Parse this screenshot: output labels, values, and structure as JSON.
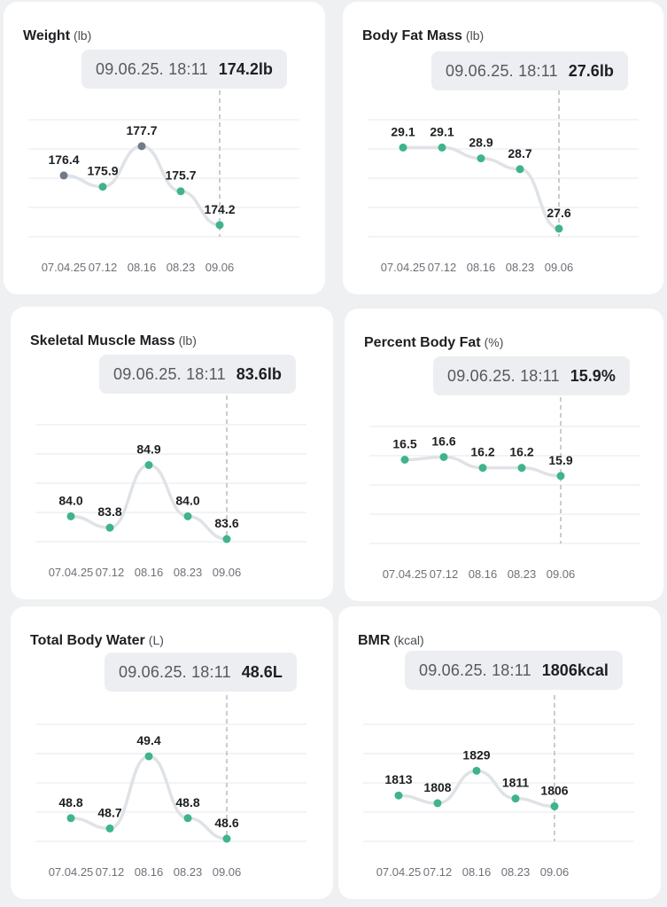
{
  "colors": {
    "line": "#dfe2e6",
    "grid": "#e6e8eb",
    "point": "#3fb48b",
    "point_highlight": "#6f7a8a",
    "cursor": "#b7bbc1"
  },
  "cards": [
    {
      "title": "Weight",
      "unit": "(lb)",
      "timestamp": "09.06.25. 18:11",
      "current_value": "174.2lb",
      "chart_data": {
        "type": "line",
        "x": [
          "07.04.25",
          "07.12",
          "08.16",
          "08.23",
          "09.06"
        ],
        "values": [
          176.4,
          175.9,
          177.7,
          175.7,
          174.2
        ],
        "labels": [
          "176.4",
          "175.9",
          "177.7",
          "175.7",
          "174.2"
        ],
        "highlighted": [
          0,
          2
        ],
        "ylim": [
          173.8,
          178.6
        ]
      }
    },
    {
      "title": "Body Fat Mass",
      "unit": "(lb)",
      "timestamp": "09.06.25. 18:11",
      "current_value": "27.6lb",
      "chart_data": {
        "type": "line",
        "x": [
          "07.04.25",
          "07.12",
          "08.16",
          "08.23",
          "09.06"
        ],
        "values": [
          29.1,
          29.1,
          28.9,
          28.7,
          27.6
        ],
        "labels": [
          "29.1",
          "29.1",
          "28.9",
          "28.7",
          "27.6"
        ],
        "highlighted": [],
        "ylim": [
          27.5,
          29.5
        ]
      }
    },
    {
      "title": "Skeletal Muscle Mass",
      "unit": "(lb)",
      "timestamp": "09.06.25. 18:11",
      "current_value": "83.6lb",
      "chart_data": {
        "type": "line",
        "x": [
          "07.04.25",
          "07.12",
          "08.16",
          "08.23",
          "09.06"
        ],
        "values": [
          84.0,
          83.8,
          84.9,
          84.0,
          83.6
        ],
        "labels": [
          "84.0",
          "83.8",
          "84.9",
          "84.0",
          "83.6"
        ],
        "highlighted": [],
        "ylim": [
          83.6,
          85.5
        ]
      }
    },
    {
      "title": "Percent Body Fat",
      "unit": "(%)",
      "timestamp": "09.06.25. 18:11",
      "current_value": "15.9%",
      "chart_data": {
        "type": "line",
        "x": [
          "07.04.25",
          "07.12",
          "08.16",
          "08.23",
          "09.06"
        ],
        "values": [
          16.5,
          16.6,
          16.2,
          16.2,
          15.9
        ],
        "labels": [
          "16.5",
          "16.6",
          "16.2",
          "16.2",
          "15.9"
        ],
        "highlighted": [],
        "ylim": [
          13.5,
          17.5
        ]
      }
    },
    {
      "title": "Total Body Water",
      "unit": "(L)",
      "timestamp": "09.06.25. 18:11",
      "current_value": "48.6L",
      "chart_data": {
        "type": "line",
        "x": [
          "07.04.25",
          "07.12",
          "08.16",
          "08.23",
          "09.06"
        ],
        "values": [
          48.8,
          48.7,
          49.4,
          48.8,
          48.6
        ],
        "labels": [
          "48.8",
          "48.7",
          "49.4",
          "48.8",
          "48.6"
        ],
        "highlighted": [],
        "ylim": [
          48.6,
          49.65
        ]
      }
    },
    {
      "title": "BMR",
      "unit": "(kcal)",
      "timestamp": "09.06.25. 18:11",
      "current_value": "1806kcal",
      "chart_data": {
        "type": "line",
        "x": [
          "07.04.25",
          "07.12",
          "08.16",
          "08.23",
          "09.06"
        ],
        "values": [
          1813,
          1808,
          1829,
          1811,
          1806
        ],
        "labels": [
          "1813",
          "1808",
          "1829",
          "1811",
          "1806"
        ],
        "highlighted": [],
        "ylim": [
          1785,
          1855
        ]
      }
    }
  ]
}
